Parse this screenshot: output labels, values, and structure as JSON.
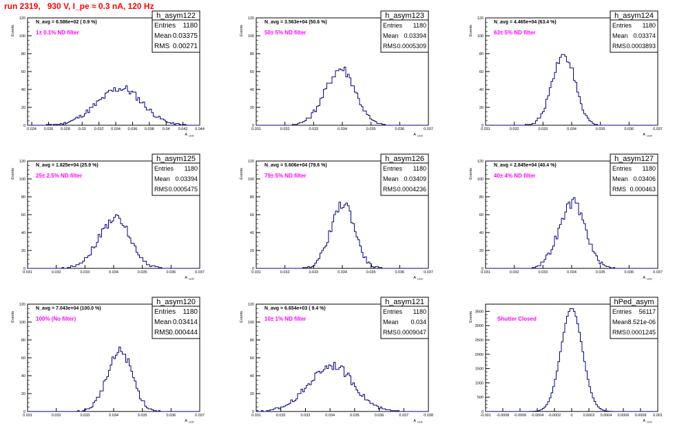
{
  "page_title": "run 2319,   930 V, I_pe ≈ 0.3 nA, 120 Hz",
  "colors": {
    "title": "#ff0000",
    "histogram_line": "#000080",
    "annotation": "#ff00ff",
    "stats_box_border": "#000000"
  },
  "chart_data": [
    {
      "type": "histogram",
      "name": "h_asym122",
      "ylabel": "Events",
      "xlabel": "A",
      "xlabel_subscript": "LED",
      "n_avg_label": "N_avg = 6.586e+02 ( 0.9 %)",
      "filter_label": "1± 0.1% ND filter",
      "stats": {
        "Entries": "1180",
        "Mean": "0.03375",
        "RMS": "0.00271"
      },
      "xlim": [
        0.0235,
        0.044
      ],
      "ylim": [
        0,
        120
      ],
      "xticks": [
        "0.024",
        "0.026",
        "0.028",
        "0.03",
        "0.032",
        "0.034",
        "0.036",
        "0.038",
        "0.04",
        "0.042",
        "0.044"
      ],
      "yticks": [
        "0",
        "20",
        "40",
        "60",
        "80",
        "100",
        "120"
      ],
      "mean": 0.03375,
      "rms": 0.00271,
      "peak": 41,
      "peak_x": 0.0343,
      "asym": 0.4
    },
    {
      "type": "histogram",
      "name": "h_asym123",
      "ylabel": "Events",
      "xlabel": "A",
      "xlabel_subscript": "LED",
      "n_avg_label": "N_avg = 3.563e+04 (50.6 %)",
      "filter_label": "50± 5% ND filter",
      "stats": {
        "Entries": "1180",
        "Mean": "0.03394",
        "RMS": "0.0005309"
      },
      "xlim": [
        0.031,
        0.037
      ],
      "ylim": [
        0,
        120
      ],
      "xticks": [
        "0.031",
        "0.032",
        "0.033",
        "0.034",
        "0.035",
        "0.036",
        "0.037"
      ],
      "yticks": [
        "0",
        "20",
        "40",
        "60",
        "80",
        "100",
        "120"
      ],
      "mean": 0.03394,
      "rms": 0.00053,
      "peak": 63,
      "peak_x": 0.0339,
      "asym": 0.3
    },
    {
      "type": "histogram",
      "name": "h_asym124",
      "ylabel": "Events",
      "xlabel": "A",
      "xlabel_subscript": "LED",
      "n_avg_label": "N_avg = 4.465e+04 (63.4 %)",
      "filter_label": "63± 5% ND filter",
      "stats": {
        "Entries": "1180",
        "Mean": "0.03374",
        "RMS": "0.0003893"
      },
      "xlim": [
        0.031,
        0.037
      ],
      "ylim": [
        0,
        120
      ],
      "xticks": [
        "0.031",
        "0.032",
        "0.033",
        "0.034",
        "0.035",
        "0.036",
        "0.037"
      ],
      "yticks": [
        "0",
        "20",
        "40",
        "60",
        "80",
        "100",
        "120"
      ],
      "mean": 0.03374,
      "rms": 0.00039,
      "peak": 80,
      "peak_x": 0.0337,
      "asym": 0.3
    },
    {
      "type": "histogram",
      "name": "h_asym125",
      "ylabel": "Events",
      "xlabel": "A",
      "xlabel_subscript": "LED",
      "n_avg_label": "N_avg = 1.825e+04 (25.9 %)",
      "filter_label": "25± 2.5% ND filter",
      "stats": {
        "Entries": "1180",
        "Mean": "0.03394",
        "RMS": "0.0005475"
      },
      "xlim": [
        0.031,
        0.037
      ],
      "ylim": [
        0,
        120
      ],
      "xticks": [
        "0.031",
        "0.032",
        "0.033",
        "0.034",
        "0.035",
        "0.036",
        "0.037"
      ],
      "yticks": [
        "0",
        "20",
        "40",
        "60",
        "80",
        "100",
        "120"
      ],
      "mean": 0.03394,
      "rms": 0.00055,
      "peak": 56,
      "peak_x": 0.034,
      "asym": 0.3
    },
    {
      "type": "histogram",
      "name": "h_asym126",
      "ylabel": "Events",
      "xlabel": "A",
      "xlabel_subscript": "LED",
      "n_avg_label": "N_avg = 5.606e+04 (79.6 %)",
      "filter_label": "79± 5% ND filter",
      "stats": {
        "Entries": "1180",
        "Mean": "0.03409",
        "RMS": "0.0004236"
      },
      "xlim": [
        0.031,
        0.037
      ],
      "ylim": [
        0,
        120
      ],
      "xticks": [
        "0.031",
        "0.032",
        "0.033",
        "0.034",
        "0.035",
        "0.036",
        "0.037"
      ],
      "yticks": [
        "0",
        "20",
        "40",
        "60",
        "80",
        "100",
        "120"
      ],
      "mean": 0.03409,
      "rms": 0.00042,
      "peak": 72,
      "peak_x": 0.034,
      "asym": 0.3
    },
    {
      "type": "histogram",
      "name": "h_asym127",
      "ylabel": "Events",
      "xlabel": "A",
      "xlabel_subscript": "LED",
      "n_avg_label": "N_avg = 2.845e+04 (40.4 %)",
      "filter_label": "40± 4% ND filter",
      "stats": {
        "Entries": "1180",
        "Mean": "0.03406",
        "RMS": "0.000463"
      },
      "xlim": [
        0.031,
        0.037
      ],
      "ylim": [
        0,
        120
      ],
      "xticks": [
        "0.031",
        "0.032",
        "0.033",
        "0.034",
        "0.035",
        "0.036",
        "0.037"
      ],
      "yticks": [
        "0",
        "20",
        "40",
        "60",
        "80",
        "100",
        "120"
      ],
      "mean": 0.03406,
      "rms": 0.00046,
      "peak": 73,
      "peak_x": 0.034,
      "asym": 0.3
    },
    {
      "type": "histogram",
      "name": "h_asym120",
      "ylabel": "Events",
      "xlabel": "A",
      "xlabel_subscript": "LED",
      "n_avg_label": "N_avg = 7.043e+04 (100.0 %)",
      "filter_label": "100% (No filter)",
      "stats": {
        "Entries": "1180",
        "Mean": "0.03414",
        "RMS": "0.000444"
      },
      "xlim": [
        0.031,
        0.037
      ],
      "ylim": [
        0,
        120
      ],
      "xticks": [
        "0.031",
        "0.032",
        "0.033",
        "0.034",
        "0.035",
        "0.036",
        "0.037"
      ],
      "yticks": [
        "0",
        "20",
        "40",
        "60",
        "80",
        "100",
        "120"
      ],
      "mean": 0.03414,
      "rms": 0.00044,
      "peak": 67,
      "peak_x": 0.0342,
      "asym": 0.3
    },
    {
      "type": "histogram",
      "name": "h_asym121",
      "ylabel": "Events",
      "xlabel": "A",
      "xlabel_subscript": "LED",
      "n_avg_label": "N_avg = 6.654e+03 ( 9.4 %)",
      "filter_label": "10± 1% ND filter",
      "stats": {
        "Entries": "1180",
        "Mean": "0.034",
        "RMS": "0.0009047"
      },
      "xlim": [
        0.031,
        0.038
      ],
      "ylim": [
        0,
        120
      ],
      "xticks": [
        "0.031",
        "0.032",
        "0.033",
        "0.034",
        "0.035",
        "0.036",
        "0.037",
        "0.038"
      ],
      "yticks": [
        "0",
        "20",
        "40",
        "60",
        "80",
        "100",
        "120"
      ],
      "mean": 0.034,
      "rms": 0.0009,
      "peak": 52,
      "peak_x": 0.034,
      "asym": 0.3
    },
    {
      "type": "histogram",
      "name": "hPed_asym",
      "ylabel": "Events",
      "xlabel": "A",
      "xlabel_subscript": "LED",
      "n_avg_label": "",
      "filter_label": "Shutter Closed",
      "stats": {
        "Entries": "56117",
        "Mean": "8.521e-06",
        "RMS": "0.0001245"
      },
      "xlim": [
        -0.001,
        0.001
      ],
      "ylim": [
        0,
        3750
      ],
      "xticks": [
        "-0.001",
        "-0.0008",
        "-0.0006",
        "-0.0004",
        "-0.0002",
        "0",
        "0.0002",
        "0.0004",
        "0.0006",
        "0.0008",
        "0.001"
      ],
      "yticks": [
        "0",
        "500",
        "1000",
        "1500",
        "2000",
        "2500",
        "3000",
        "3500"
      ],
      "mean": 8.5e-06,
      "rms": 0.0001245,
      "peak": 3600,
      "peak_x": 0.0,
      "asym": 0
    }
  ]
}
